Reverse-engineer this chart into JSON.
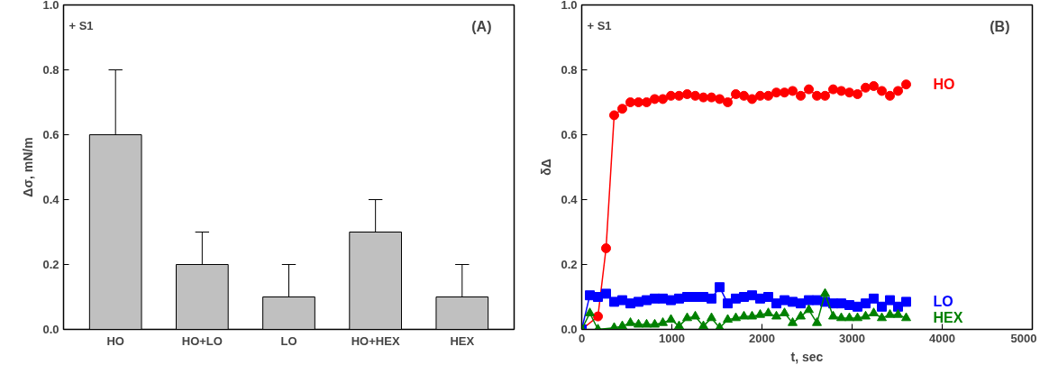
{
  "chart_data": [
    {
      "type": "bar",
      "ylabel": "Δσ, mN/m",
      "categories": [
        "HO",
        "HO+LO",
        "LO",
        "HO+HEX",
        "HEX"
      ],
      "values": [
        0.6,
        0.2,
        0.1,
        0.3,
        0.1
      ],
      "color": "#c0c0c0",
      "errors": [
        [
          0.6,
          0.8
        ],
        [
          0.2,
          0.3
        ],
        [
          0.1,
          0.2
        ],
        [
          0.3,
          0.4
        ],
        [
          0.1,
          0.2
        ]
      ],
      "ylim": [
        0,
        1
      ],
      "yticks": [
        {
          "value": 0,
          "label": "0.0"
        },
        {
          "value": 0.2,
          "label": "0.2"
        },
        {
          "value": 0.4,
          "label": "0.4"
        },
        {
          "value": 0.6,
          "label": "0.6"
        },
        {
          "value": 0.8,
          "label": "0.8"
        },
        {
          "value": 1,
          "label": "1.0"
        }
      ],
      "annotations": [
        "+ S1",
        "(A)"
      ],
      "grid": false
    },
    {
      "type": "line",
      "xlabel": "t, sec",
      "ylabel": "δΔ",
      "xlim": [
        0,
        5000
      ],
      "xticks": [
        0,
        1000,
        2000,
        3000,
        4000,
        5000
      ],
      "ylim": [
        0,
        1
      ],
      "yticks": [
        {
          "value": 0,
          "label": "0.0"
        },
        {
          "value": 0.2,
          "label": "0.2"
        },
        {
          "value": 0.4,
          "label": "0.4"
        },
        {
          "value": 0.6,
          "label": "0.6"
        },
        {
          "value": 0.8,
          "label": "0.8"
        },
        {
          "value": 1,
          "label": "1.0"
        }
      ],
      "annotations": [
        "+ S1",
        "(B)"
      ],
      "grid": false,
      "series": [
        {
          "name": "HO",
          "color": "#ff0000",
          "marker": "circle",
          "x": [
            0,
            180,
            270,
            360,
            450,
            540,
            630,
            720,
            810,
            900,
            990,
            1080,
            1170,
            1260,
            1350,
            1440,
            1530,
            1620,
            1710,
            1800,
            1890,
            1980,
            2070,
            2160,
            2250,
            2340,
            2430,
            2520,
            2610,
            2700,
            2790,
            2880,
            2970,
            3060,
            3150,
            3240,
            3330,
            3420,
            3510,
            3600
          ],
          "values": [
            0,
            0.04,
            0.25,
            0.66,
            0.68,
            0.7,
            0.7,
            0.7,
            0.71,
            0.71,
            0.72,
            0.72,
            0.725,
            0.72,
            0.715,
            0.715,
            0.71,
            0.7,
            0.725,
            0.72,
            0.71,
            0.72,
            0.72,
            0.73,
            0.73,
            0.735,
            0.72,
            0.74,
            0.72,
            0.72,
            0.74,
            0.735,
            0.73,
            0.725,
            0.745,
            0.75,
            0.735,
            0.72,
            0.735,
            0.755
          ]
        },
        {
          "name": "LO",
          "color": "#0000ff",
          "marker": "square",
          "x": [
            0,
            90,
            180,
            270,
            360,
            450,
            540,
            630,
            720,
            810,
            900,
            990,
            1080,
            1170,
            1260,
            1350,
            1440,
            1530,
            1620,
            1710,
            1800,
            1890,
            1980,
            2070,
            2160,
            2250,
            2340,
            2430,
            2520,
            2610,
            2700,
            2790,
            2880,
            2970,
            3060,
            3150,
            3240,
            3330,
            3420,
            3510,
            3600
          ],
          "values": [
            0,
            0.105,
            0.1,
            0.11,
            0.085,
            0.09,
            0.08,
            0.085,
            0.09,
            0.095,
            0.095,
            0.09,
            0.095,
            0.1,
            0.1,
            0.1,
            0.095,
            0.13,
            0.08,
            0.095,
            0.1,
            0.105,
            0.095,
            0.1,
            0.08,
            0.09,
            0.085,
            0.08,
            0.09,
            0.09,
            0.085,
            0.08,
            0.08,
            0.075,
            0.07,
            0.08,
            0.095,
            0.07,
            0.09,
            0.07,
            0.085
          ]
        },
        {
          "name": "HEX",
          "color": "#008000",
          "marker": "triangle",
          "x": [
            0,
            90,
            180,
            360,
            450,
            540,
            630,
            720,
            810,
            900,
            990,
            1080,
            1170,
            1260,
            1350,
            1440,
            1530,
            1620,
            1710,
            1800,
            1890,
            1980,
            2070,
            2160,
            2250,
            2340,
            2430,
            2520,
            2610,
            2700,
            2790,
            2880,
            2970,
            3060,
            3150,
            3240,
            3330,
            3420,
            3510,
            3600
          ],
          "values": [
            0,
            0.05,
            0.0,
            0.005,
            0.01,
            0.02,
            0.015,
            0.015,
            0.015,
            0.02,
            0.03,
            0.01,
            0.035,
            0.04,
            0.01,
            0.035,
            0.005,
            0.03,
            0.035,
            0.04,
            0.04,
            0.045,
            0.05,
            0.04,
            0.05,
            0.02,
            0.04,
            0.06,
            0.02,
            0.11,
            0.04,
            0.035,
            0.035,
            0.035,
            0.04,
            0.05,
            0.035,
            0.045,
            0.045,
            0.035
          ]
        }
      ]
    }
  ]
}
